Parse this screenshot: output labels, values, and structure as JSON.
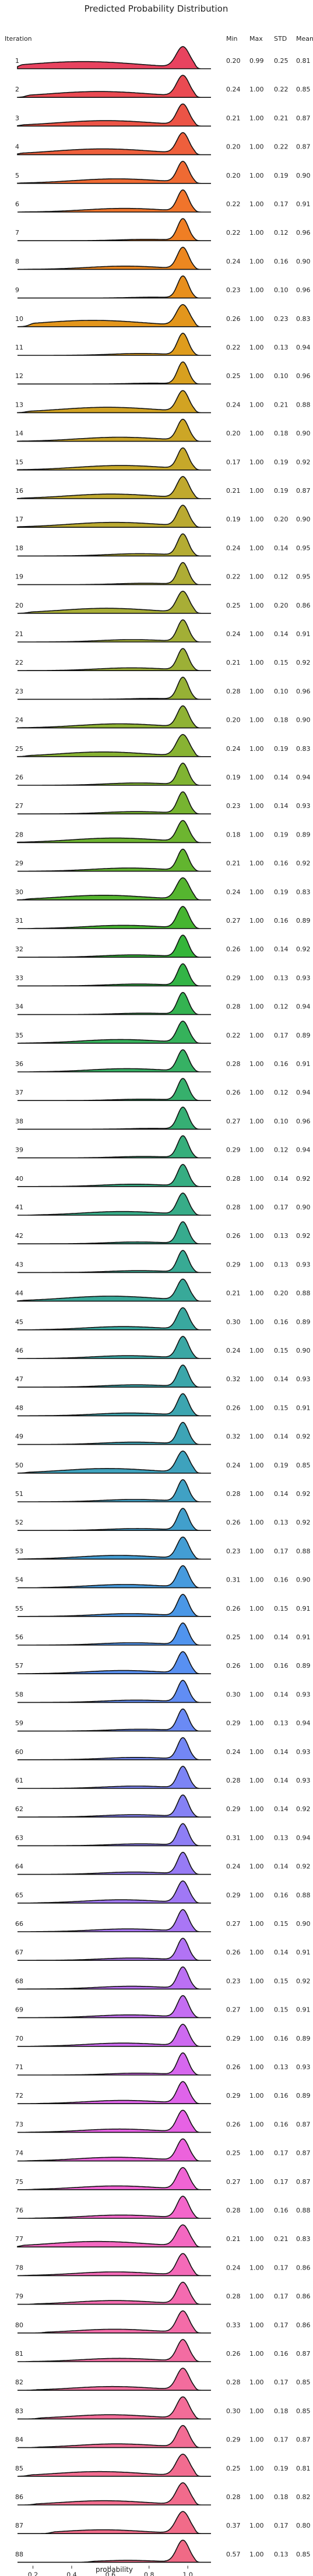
{
  "chart_data": {
    "type": "ridgeline",
    "title": "Predicted Probability Distribution",
    "row_label_header": "Iteration",
    "stat_headers": [
      "Min",
      "Max",
      "STD",
      "Mean"
    ],
    "xlabel": "probability",
    "xlim": [
      0.12,
      1.12
    ],
    "x_ticks": [
      0.2,
      0.4,
      0.6,
      0.8,
      1.0
    ],
    "x_tick_labels": [
      "0.2",
      "0.4",
      "0.6",
      "0.8",
      "1.0"
    ],
    "grid": false,
    "rows": [
      {
        "iteration": "1",
        "min": "0.20",
        "max": "0.99",
        "std": "0.25",
        "mean": "0.81",
        "color": "#e8435f"
      },
      {
        "iteration": "2",
        "min": "0.24",
        "max": "1.00",
        "std": "0.22",
        "mean": "0.85",
        "color": "#ea4a52"
      },
      {
        "iteration": "3",
        "min": "0.21",
        "max": "1.00",
        "std": "0.21",
        "mean": "0.87",
        "color": "#ec5446"
      },
      {
        "iteration": "4",
        "min": "0.20",
        "max": "1.00",
        "std": "0.22",
        "mean": "0.87",
        "color": "#ee5f3c"
      },
      {
        "iteration": "5",
        "min": "0.20",
        "max": "1.00",
        "std": "0.19",
        "mean": "0.90",
        "color": "#ef6a33"
      },
      {
        "iteration": "6",
        "min": "0.22",
        "max": "1.00",
        "std": "0.17",
        "mean": "0.91",
        "color": "#f0742b"
      },
      {
        "iteration": "7",
        "min": "0.22",
        "max": "1.00",
        "std": "0.12",
        "mean": "0.96",
        "color": "#ef7e24"
      },
      {
        "iteration": "8",
        "min": "0.24",
        "max": "1.00",
        "std": "0.16",
        "mean": "0.90",
        "color": "#ec8720"
      },
      {
        "iteration": "9",
        "min": "0.23",
        "max": "1.00",
        "std": "0.10",
        "mean": "0.96",
        "color": "#e88f1d"
      },
      {
        "iteration": "10",
        "min": "0.26",
        "max": "1.00",
        "std": "0.23",
        "mean": "0.83",
        "color": "#e3961c"
      },
      {
        "iteration": "11",
        "min": "0.22",
        "max": "1.00",
        "std": "0.13",
        "mean": "0.94",
        "color": "#de9c1d"
      },
      {
        "iteration": "12",
        "min": "0.25",
        "max": "1.00",
        "std": "0.10",
        "mean": "0.96",
        "color": "#d8a01f"
      },
      {
        "iteration": "13",
        "min": "0.24",
        "max": "1.00",
        "std": "0.21",
        "mean": "0.88",
        "color": "#d2a322"
      },
      {
        "iteration": "14",
        "min": "0.20",
        "max": "1.00",
        "std": "0.18",
        "mean": "0.90",
        "color": "#cca626"
      },
      {
        "iteration": "15",
        "min": "0.17",
        "max": "1.00",
        "std": "0.19",
        "mean": "0.92",
        "color": "#c6a82a"
      },
      {
        "iteration": "16",
        "min": "0.21",
        "max": "1.00",
        "std": "0.19",
        "mean": "0.87",
        "color": "#c0a92e"
      },
      {
        "iteration": "17",
        "min": "0.19",
        "max": "1.00",
        "std": "0.20",
        "mean": "0.90",
        "color": "#baaa31"
      },
      {
        "iteration": "18",
        "min": "0.24",
        "max": "1.00",
        "std": "0.14",
        "mean": "0.95",
        "color": "#b4ac33"
      },
      {
        "iteration": "19",
        "min": "0.22",
        "max": "1.00",
        "std": "0.12",
        "mean": "0.95",
        "color": "#aead35"
      },
      {
        "iteration": "20",
        "min": "0.25",
        "max": "1.00",
        "std": "0.20",
        "mean": "0.86",
        "color": "#a8ae36"
      },
      {
        "iteration": "21",
        "min": "0.24",
        "max": "1.00",
        "std": "0.14",
        "mean": "0.91",
        "color": "#a2af36"
      },
      {
        "iteration": "22",
        "min": "0.21",
        "max": "1.00",
        "std": "0.15",
        "mean": "0.92",
        "color": "#9cb036"
      },
      {
        "iteration": "23",
        "min": "0.28",
        "max": "1.00",
        "std": "0.10",
        "mean": "0.96",
        "color": "#96b135"
      },
      {
        "iteration": "24",
        "min": "0.20",
        "max": "1.00",
        "std": "0.18",
        "mean": "0.90",
        "color": "#8fb234"
      },
      {
        "iteration": "25",
        "min": "0.24",
        "max": "1.00",
        "std": "0.19",
        "mean": "0.83",
        "color": "#88b333"
      },
      {
        "iteration": "26",
        "min": "0.19",
        "max": "1.00",
        "std": "0.14",
        "mean": "0.94",
        "color": "#80b432"
      },
      {
        "iteration": "27",
        "min": "0.23",
        "max": "1.00",
        "std": "0.14",
        "mean": "0.93",
        "color": "#77b431"
      },
      {
        "iteration": "28",
        "min": "0.18",
        "max": "1.00",
        "std": "0.19",
        "mean": "0.89",
        "color": "#6db530"
      },
      {
        "iteration": "29",
        "min": "0.21",
        "max": "1.00",
        "std": "0.16",
        "mean": "0.92",
        "color": "#62b52f"
      },
      {
        "iteration": "30",
        "min": "0.24",
        "max": "1.00",
        "std": "0.19",
        "mean": "0.83",
        "color": "#55b52f"
      },
      {
        "iteration": "31",
        "min": "0.27",
        "max": "1.00",
        "std": "0.16",
        "mean": "0.89",
        "color": "#46b531"
      },
      {
        "iteration": "32",
        "min": "0.26",
        "max": "1.00",
        "std": "0.14",
        "mean": "0.92",
        "color": "#35b53a"
      },
      {
        "iteration": "33",
        "min": "0.29",
        "max": "1.00",
        "std": "0.13",
        "mean": "0.93",
        "color": "#33b446"
      },
      {
        "iteration": "34",
        "min": "0.28",
        "max": "1.00",
        "std": "0.12",
        "mean": "0.94",
        "color": "#34b351"
      },
      {
        "iteration": "35",
        "min": "0.22",
        "max": "1.00",
        "std": "0.17",
        "mean": "0.89",
        "color": "#35b25b"
      },
      {
        "iteration": "36",
        "min": "0.28",
        "max": "1.00",
        "std": "0.16",
        "mean": "0.91",
        "color": "#36b164"
      },
      {
        "iteration": "37",
        "min": "0.26",
        "max": "1.00",
        "std": "0.12",
        "mean": "0.94",
        "color": "#36b06c"
      },
      {
        "iteration": "38",
        "min": "0.27",
        "max": "1.00",
        "std": "0.10",
        "mean": "0.96",
        "color": "#36af74"
      },
      {
        "iteration": "39",
        "min": "0.29",
        "max": "1.00",
        "std": "0.12",
        "mean": "0.94",
        "color": "#36ae7b"
      },
      {
        "iteration": "40",
        "min": "0.28",
        "max": "1.00",
        "std": "0.14",
        "mean": "0.92",
        "color": "#36ad82"
      },
      {
        "iteration": "41",
        "min": "0.28",
        "max": "1.00",
        "std": "0.17",
        "mean": "0.90",
        "color": "#37ac88"
      },
      {
        "iteration": "42",
        "min": "0.26",
        "max": "1.00",
        "std": "0.13",
        "mean": "0.92",
        "color": "#37ab8e"
      },
      {
        "iteration": "43",
        "min": "0.29",
        "max": "1.00",
        "std": "0.13",
        "mean": "0.93",
        "color": "#38aa94"
      },
      {
        "iteration": "44",
        "min": "0.21",
        "max": "1.00",
        "std": "0.20",
        "mean": "0.88",
        "color": "#38a999"
      },
      {
        "iteration": "45",
        "min": "0.30",
        "max": "1.00",
        "std": "0.16",
        "mean": "0.89",
        "color": "#39a89f"
      },
      {
        "iteration": "46",
        "min": "0.24",
        "max": "1.00",
        "std": "0.15",
        "mean": "0.90",
        "color": "#3aa7a4"
      },
      {
        "iteration": "47",
        "min": "0.32",
        "max": "1.00",
        "std": "0.14",
        "mean": "0.93",
        "color": "#3ba6aa"
      },
      {
        "iteration": "48",
        "min": "0.26",
        "max": "1.00",
        "std": "0.15",
        "mean": "0.91",
        "color": "#3ca5b0"
      },
      {
        "iteration": "49",
        "min": "0.32",
        "max": "1.00",
        "std": "0.14",
        "mean": "0.92",
        "color": "#3da4b6"
      },
      {
        "iteration": "50",
        "min": "0.24",
        "max": "1.00",
        "std": "0.19",
        "mean": "0.85",
        "color": "#3ea2bd"
      },
      {
        "iteration": "51",
        "min": "0.28",
        "max": "1.00",
        "std": "0.14",
        "mean": "0.92",
        "color": "#40a1c4"
      },
      {
        "iteration": "52",
        "min": "0.26",
        "max": "1.00",
        "std": "0.13",
        "mean": "0.92",
        "color": "#419fcc"
      },
      {
        "iteration": "53",
        "min": "0.23",
        "max": "1.00",
        "std": "0.17",
        "mean": "0.88",
        "color": "#439dd4"
      },
      {
        "iteration": "54",
        "min": "0.31",
        "max": "1.00",
        "std": "0.16",
        "mean": "0.90",
        "color": "#469add"
      },
      {
        "iteration": "55",
        "min": "0.26",
        "max": "1.00",
        "std": "0.15",
        "mean": "0.91",
        "color": "#4a97e6"
      },
      {
        "iteration": "56",
        "min": "0.25",
        "max": "1.00",
        "std": "0.14",
        "mean": "0.91",
        "color": "#5094ee"
      },
      {
        "iteration": "57",
        "min": "0.26",
        "max": "1.00",
        "std": "0.16",
        "mean": "0.89",
        "color": "#5890f2"
      },
      {
        "iteration": "58",
        "min": "0.30",
        "max": "1.00",
        "std": "0.14",
        "mean": "0.93",
        "color": "#618df4"
      },
      {
        "iteration": "59",
        "min": "0.29",
        "max": "1.00",
        "std": "0.13",
        "mean": "0.94",
        "color": "#6a8af5"
      },
      {
        "iteration": "60",
        "min": "0.24",
        "max": "1.00",
        "std": "0.14",
        "mean": "0.93",
        "color": "#7387f5"
      },
      {
        "iteration": "61",
        "min": "0.28",
        "max": "1.00",
        "std": "0.14",
        "mean": "0.93",
        "color": "#7c84f5"
      },
      {
        "iteration": "62",
        "min": "0.29",
        "max": "1.00",
        "std": "0.14",
        "mean": "0.92",
        "color": "#8581f5"
      },
      {
        "iteration": "63",
        "min": "0.31",
        "max": "1.00",
        "std": "0.13",
        "mean": "0.94",
        "color": "#8e7ef5"
      },
      {
        "iteration": "64",
        "min": "0.24",
        "max": "1.00",
        "std": "0.14",
        "mean": "0.92",
        "color": "#977bf5"
      },
      {
        "iteration": "65",
        "min": "0.29",
        "max": "1.00",
        "std": "0.16",
        "mean": "0.88",
        "color": "#a078f5"
      },
      {
        "iteration": "66",
        "min": "0.27",
        "max": "1.00",
        "std": "0.15",
        "mean": "0.90",
        "color": "#a976f5"
      },
      {
        "iteration": "67",
        "min": "0.26",
        "max": "1.00",
        "std": "0.14",
        "mean": "0.91",
        "color": "#b273f4"
      },
      {
        "iteration": "68",
        "min": "0.23",
        "max": "1.00",
        "std": "0.15",
        "mean": "0.92",
        "color": "#bb70f3"
      },
      {
        "iteration": "69",
        "min": "0.27",
        "max": "1.00",
        "std": "0.15",
        "mean": "0.91",
        "color": "#c46df2"
      },
      {
        "iteration": "70",
        "min": "0.29",
        "max": "1.00",
        "std": "0.16",
        "mean": "0.89",
        "color": "#cd6af0"
      },
      {
        "iteration": "71",
        "min": "0.26",
        "max": "1.00",
        "std": "0.13",
        "mean": "0.93",
        "color": "#d667ee"
      },
      {
        "iteration": "72",
        "min": "0.29",
        "max": "1.00",
        "std": "0.16",
        "mean": "0.89",
        "color": "#df64ea"
      },
      {
        "iteration": "73",
        "min": "0.26",
        "max": "1.00",
        "std": "0.16",
        "mean": "0.87",
        "color": "#e662e4"
      },
      {
        "iteration": "74",
        "min": "0.25",
        "max": "1.00",
        "std": "0.17",
        "mean": "0.87",
        "color": "#ec62dc"
      },
      {
        "iteration": "75",
        "min": "0.27",
        "max": "1.00",
        "std": "0.17",
        "mean": "0.87",
        "color": "#f064d3"
      },
      {
        "iteration": "76",
        "min": "0.28",
        "max": "1.00",
        "std": "0.16",
        "mean": "0.88",
        "color": "#f366ca"
      },
      {
        "iteration": "77",
        "min": "0.21",
        "max": "1.00",
        "std": "0.21",
        "mean": "0.83",
        "color": "#f468c1"
      },
      {
        "iteration": "78",
        "min": "0.24",
        "max": "1.00",
        "std": "0.17",
        "mean": "0.86",
        "color": "#f46ab8"
      },
      {
        "iteration": "79",
        "min": "0.28",
        "max": "1.00",
        "std": "0.17",
        "mean": "0.86",
        "color": "#f46bb0"
      },
      {
        "iteration": "80",
        "min": "0.33",
        "max": "1.00",
        "std": "0.17",
        "mean": "0.86",
        "color": "#f46ca8"
      },
      {
        "iteration": "81",
        "min": "0.26",
        "max": "1.00",
        "std": "0.16",
        "mean": "0.87",
        "color": "#f36ca2"
      },
      {
        "iteration": "82",
        "min": "0.28",
        "max": "1.00",
        "std": "0.17",
        "mean": "0.85",
        "color": "#f36c9d"
      },
      {
        "iteration": "83",
        "min": "0.30",
        "max": "1.00",
        "std": "0.18",
        "mean": "0.85",
        "color": "#f36c98"
      },
      {
        "iteration": "84",
        "min": "0.29",
        "max": "1.00",
        "std": "0.17",
        "mean": "0.87",
        "color": "#f26c94"
      },
      {
        "iteration": "85",
        "min": "0.25",
        "max": "1.00",
        "std": "0.19",
        "mean": "0.81",
        "color": "#f26c90"
      },
      {
        "iteration": "86",
        "min": "0.28",
        "max": "1.00",
        "std": "0.18",
        "mean": "0.82",
        "color": "#f16b8c"
      },
      {
        "iteration": "87",
        "min": "0.37",
        "max": "1.00",
        "std": "0.17",
        "mean": "0.80",
        "color": "#f16b89"
      },
      {
        "iteration": "88",
        "min": "0.57",
        "max": "1.00",
        "std": "0.13",
        "mean": "0.85",
        "color": "#f06a86"
      }
    ]
  }
}
